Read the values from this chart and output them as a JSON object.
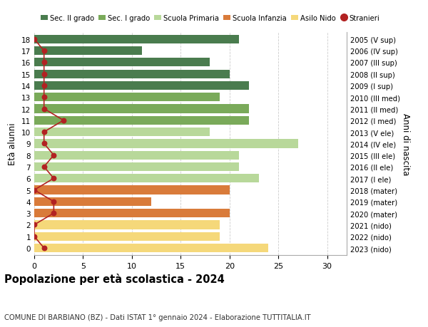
{
  "ages": [
    18,
    17,
    16,
    15,
    14,
    13,
    12,
    11,
    10,
    9,
    8,
    7,
    6,
    5,
    4,
    3,
    2,
    1,
    0
  ],
  "right_labels": [
    "2005 (V sup)",
    "2006 (IV sup)",
    "2007 (III sup)",
    "2008 (II sup)",
    "2009 (I sup)",
    "2010 (III med)",
    "2011 (II med)",
    "2012 (I med)",
    "2013 (V ele)",
    "2014 (IV ele)",
    "2015 (III ele)",
    "2016 (II ele)",
    "2017 (I ele)",
    "2018 (mater)",
    "2019 (mater)",
    "2020 (mater)",
    "2021 (nido)",
    "2022 (nido)",
    "2023 (nido)"
  ],
  "bar_values": [
    21,
    11,
    18,
    20,
    22,
    19,
    22,
    22,
    18,
    27,
    21,
    21,
    23,
    20,
    12,
    20,
    19,
    19,
    24
  ],
  "bar_colors": [
    "#4a7c4e",
    "#4a7c4e",
    "#4a7c4e",
    "#4a7c4e",
    "#4a7c4e",
    "#7aaa5a",
    "#7aaa5a",
    "#7aaa5a",
    "#b8d89a",
    "#b8d89a",
    "#b8d89a",
    "#b8d89a",
    "#b8d89a",
    "#d97b3a",
    "#d97b3a",
    "#d97b3a",
    "#f5d87a",
    "#f5d87a",
    "#f5d87a"
  ],
  "stranieri_values": [
    0,
    1,
    1,
    1,
    1,
    1,
    1,
    3,
    1,
    1,
    2,
    1,
    2,
    0,
    2,
    2,
    0,
    0,
    1
  ],
  "stranieri_color": "#b22222",
  "legend_labels": [
    "Sec. II grado",
    "Sec. I grado",
    "Scuola Primaria",
    "Scuola Infanzia",
    "Asilo Nido",
    "Stranieri"
  ],
  "legend_colors": [
    "#4a7c4e",
    "#7aaa5a",
    "#b8d89a",
    "#d97b3a",
    "#f5d87a",
    "#b22222"
  ],
  "legend_marker_types": [
    "rect",
    "rect",
    "rect",
    "rect",
    "rect",
    "circle"
  ],
  "ylabel": "Età alunni",
  "right_ylabel": "Anni di nascita",
  "title": "Popolazione per età scolastica - 2024",
  "subtitle": "COMUNE DI BARBIANO (BZ) - Dati ISTAT 1° gennaio 2024 - Elaborazione TUTTITALIA.IT",
  "xlim": [
    0,
    32
  ],
  "xticks": [
    0,
    5,
    10,
    15,
    20,
    25,
    30
  ],
  "bg_color": "#ffffff",
  "grid_color": "#cccccc"
}
